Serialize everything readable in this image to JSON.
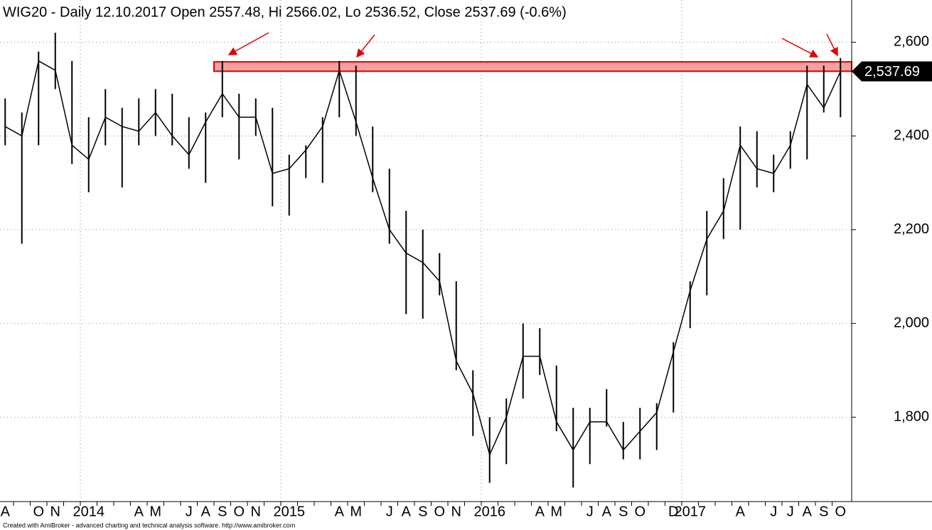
{
  "chart_data": {
    "type": "hlc",
    "title": "WIG20 - Daily 12.10.2017 Open 2557.48, Hi 2566.02, Lo 2536.52, Close 2537.69 (-0.6%)",
    "footer": "Created with AmiBroker - advanced charting and technical analysis software. http://www.amibroker.com",
    "categories": [
      "A",
      null,
      "O",
      "N",
      null,
      "2014",
      null,
      null,
      "A",
      "M",
      null,
      "J",
      "A",
      "S",
      "O",
      "N",
      null,
      "2015",
      null,
      null,
      "A",
      "M",
      null,
      "J",
      "A",
      "S",
      "O",
      "N",
      null,
      "2016",
      null,
      null,
      "A",
      "M",
      null,
      "J",
      "A",
      "S",
      "O",
      null,
      "D",
      "2017",
      null,
      null,
      "A",
      null,
      "J",
      "J",
      "A",
      "S",
      "O"
    ],
    "high": [
      2480,
      2450,
      2580,
      2620,
      2560,
      2440,
      2500,
      2460,
      2480,
      2500,
      2490,
      2440,
      2450,
      2560,
      2490,
      2480,
      2460,
      2360,
      2380,
      2440,
      2560,
      2550,
      2420,
      2330,
      2240,
      2200,
      2150,
      2090,
      1900,
      1800,
      1840,
      2000,
      1990,
      1910,
      1820,
      1820,
      1860,
      1790,
      1820,
      1830,
      1960,
      2090,
      2240,
      2310,
      2420,
      2410,
      2360,
      2410,
      2550,
      2550,
      2566.02
    ],
    "low": [
      2380,
      2170,
      2380,
      2500,
      2340,
      2280,
      2380,
      2290,
      2380,
      2400,
      2380,
      2330,
      2300,
      2440,
      2350,
      2400,
      2250,
      2230,
      2310,
      2300,
      2440,
      2400,
      2280,
      2170,
      2020,
      2010,
      2060,
      1900,
      1760,
      1660,
      1700,
      1840,
      1890,
      1770,
      1650,
      1700,
      1780,
      1710,
      1710,
      1730,
      1810,
      1990,
      2060,
      2180,
      2200,
      2290,
      2280,
      2330,
      2350,
      2450,
      2440
    ],
    "close": [
      2420,
      2400,
      2560,
      2540,
      2380,
      2350,
      2440,
      2420,
      2410,
      2450,
      2400,
      2360,
      2430,
      2490,
      2440,
      2440,
      2320,
      2330,
      2370,
      2420,
      2540,
      2430,
      2310,
      2200,
      2150,
      2130,
      2090,
      1920,
      1850,
      1720,
      1800,
      1930,
      1930,
      1790,
      1730,
      1790,
      1790,
      1730,
      1770,
      1810,
      1940,
      2070,
      2180,
      2240,
      2380,
      2330,
      2320,
      2380,
      2510,
      2460,
      2537.69
    ],
    "color": "#000000",
    "zone": [
      2538,
      2558
    ],
    "zone_color": "#f4a0a0",
    "last_label": {
      "value": 2537.69,
      "label": "2,537.69"
    },
    "ylim": [
      1620,
      2690
    ],
    "yticks": [
      {
        "value": 1800,
        "label": "1,800"
      },
      {
        "value": 2000,
        "label": "2,000"
      },
      {
        "value": 2200,
        "label": "2,200"
      },
      {
        "value": 2400,
        "label": "2,400"
      },
      {
        "value": 2600,
        "label": "2,600"
      }
    ],
    "grid": true
  }
}
